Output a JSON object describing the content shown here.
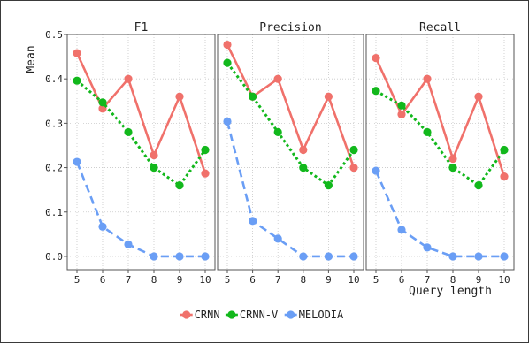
{
  "chart_data": {
    "type": "line",
    "panels": [
      {
        "title": "F1",
        "series": [
          {
            "name": "CRNN",
            "values": [
              0.458,
              0.333,
              0.4,
              0.228,
              0.36,
              0.187
            ]
          },
          {
            "name": "CRNN-V",
            "values": [
              0.396,
              0.347,
              0.28,
              0.2,
              0.16,
              0.24
            ]
          },
          {
            "name": "MELODIA",
            "values": [
              0.213,
              0.067,
              0.027,
              0.0,
              0.0,
              0.0
            ]
          }
        ]
      },
      {
        "title": "Precision",
        "series": [
          {
            "name": "CRNN",
            "values": [
              0.477,
              0.36,
              0.4,
              0.24,
              0.36,
              0.2
            ]
          },
          {
            "name": "CRNN-V",
            "values": [
              0.436,
              0.36,
              0.28,
              0.2,
              0.16,
              0.24
            ]
          },
          {
            "name": "MELODIA",
            "values": [
              0.304,
              0.08,
              0.04,
              0.0,
              0.0,
              0.0
            ]
          }
        ]
      },
      {
        "title": "Recall",
        "series": [
          {
            "name": "CRNN",
            "values": [
              0.447,
              0.32,
              0.4,
              0.22,
              0.36,
              0.18
            ]
          },
          {
            "name": "CRNN-V",
            "values": [
              0.373,
              0.34,
              0.28,
              0.2,
              0.16,
              0.24
            ]
          },
          {
            "name": "MELODIA",
            "values": [
              0.193,
              0.06,
              0.02,
              0.0,
              0.0,
              0.0
            ]
          }
        ]
      }
    ],
    "x": [
      5,
      6,
      7,
      8,
      9,
      10
    ],
    "xlabel": "Query length",
    "ylabel": "Mean",
    "ylim": [
      -0.03,
      0.5
    ],
    "yticks": [
      0.0,
      0.1,
      0.2,
      0.3,
      0.4,
      0.5
    ],
    "grid": true,
    "legend": {
      "position": "bottom-center",
      "entries": [
        "CRNN",
        "CRNN-V",
        "MELODIA"
      ]
    },
    "colors": {
      "CRNN": "#f0716b",
      "CRNN-V": "#12b81c",
      "MELODIA": "#6a9ef5"
    },
    "line_styles": {
      "CRNN": "solid",
      "CRNN-V": "dotted",
      "MELODIA": "dashed"
    }
  }
}
